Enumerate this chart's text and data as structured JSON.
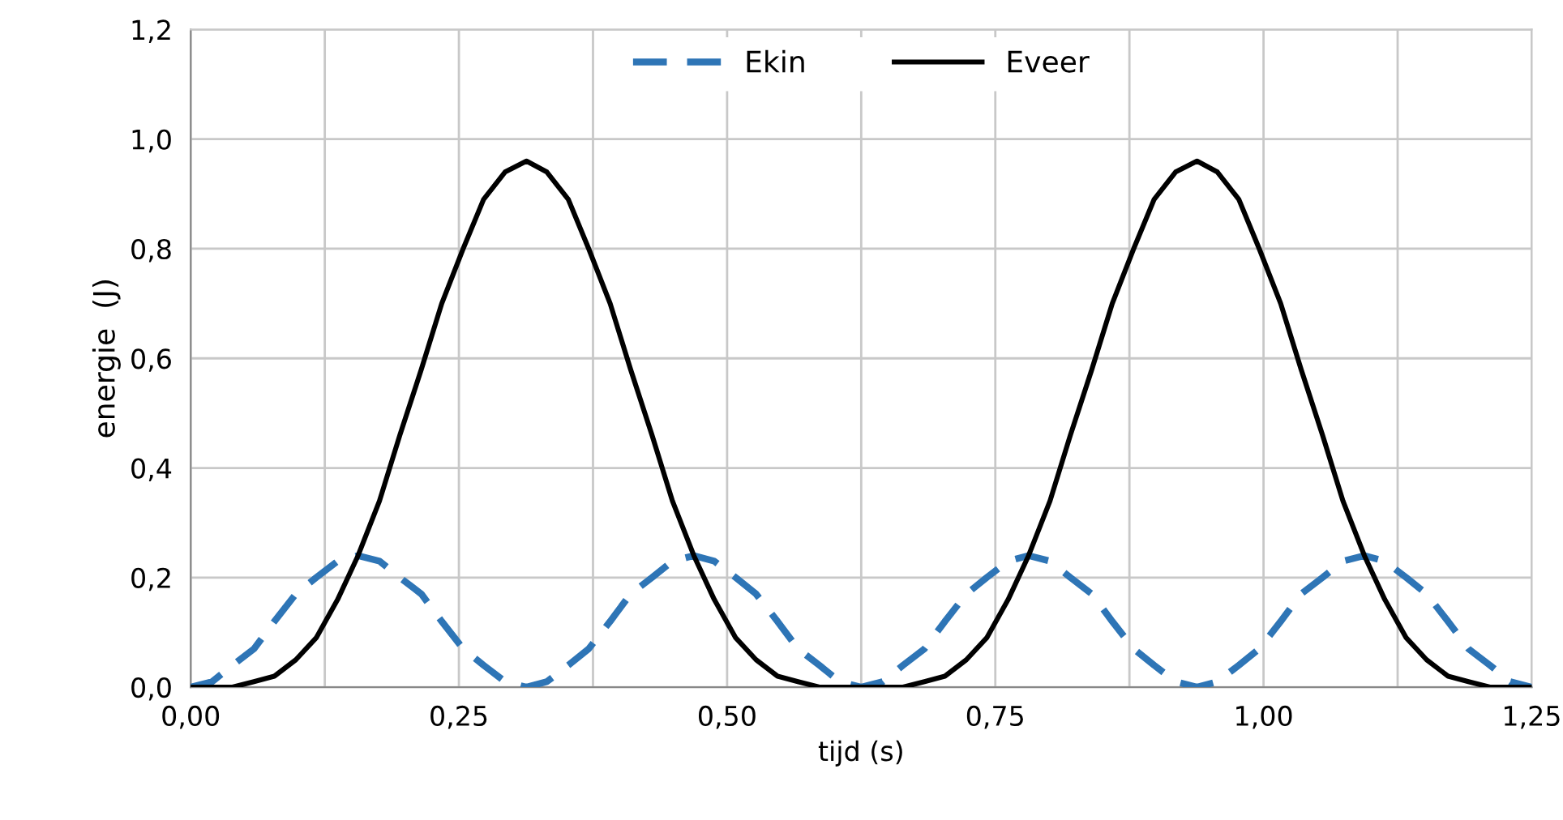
{
  "chart_data": {
    "type": "line",
    "xlabel": "tijd (s)",
    "ylabel": "energie  (J)",
    "x": [
      0,
      0.02,
      0.039,
      0.059,
      0.078,
      0.098,
      0.117,
      0.137,
      0.156,
      0.176,
      0.195,
      0.215,
      0.234,
      0.254,
      0.273,
      0.293,
      0.313,
      0.332,
      0.352,
      0.371,
      0.391,
      0.41,
      0.43,
      0.449,
      0.469,
      0.488,
      0.508,
      0.527,
      0.547,
      0.566,
      0.586,
      0.605,
      0.625,
      0.645,
      0.664,
      0.684,
      0.703,
      0.723,
      0.742,
      0.762,
      0.781,
      0.801,
      0.82,
      0.84,
      0.859,
      0.879,
      0.898,
      0.918,
      0.938,
      0.957,
      0.977,
      0.996,
      1.016,
      1.035,
      1.055,
      1.074,
      1.094,
      1.113,
      1.133,
      1.152,
      1.172,
      1.191,
      1.211,
      1.23,
      1.25
    ],
    "series": [
      {
        "name": "Ekin",
        "color": "#2e75b6",
        "line_style": "dashed",
        "values": [
          0,
          0.01,
          0.04,
          0.07,
          0.12,
          0.17,
          0.2,
          0.23,
          0.24,
          0.23,
          0.2,
          0.17,
          0.12,
          0.07,
          0.04,
          0.01,
          0,
          0.01,
          0.04,
          0.07,
          0.12,
          0.17,
          0.2,
          0.23,
          0.24,
          0.23,
          0.2,
          0.17,
          0.12,
          0.07,
          0.04,
          0.01,
          0,
          0.01,
          0.04,
          0.07,
          0.12,
          0.17,
          0.2,
          0.23,
          0.24,
          0.23,
          0.2,
          0.17,
          0.12,
          0.07,
          0.04,
          0.01,
          0,
          0.01,
          0.04,
          0.07,
          0.12,
          0.17,
          0.2,
          0.23,
          0.24,
          0.23,
          0.2,
          0.17,
          0.12,
          0.07,
          0.04,
          0.01,
          0
        ]
      },
      {
        "name": "Eveer",
        "color": "#000000",
        "line_style": "solid",
        "values": [
          0,
          0,
          0,
          0.01,
          0.02,
          0.05,
          0.09,
          0.16,
          0.24,
          0.34,
          0.46,
          0.58,
          0.7,
          0.8,
          0.89,
          0.94,
          0.96,
          0.94,
          0.89,
          0.8,
          0.7,
          0.58,
          0.46,
          0.34,
          0.24,
          0.16,
          0.09,
          0.05,
          0.02,
          0.01,
          0,
          0,
          0,
          0,
          0,
          0.01,
          0.02,
          0.05,
          0.09,
          0.16,
          0.24,
          0.34,
          0.46,
          0.58,
          0.7,
          0.8,
          0.89,
          0.94,
          0.96,
          0.94,
          0.89,
          0.8,
          0.7,
          0.58,
          0.46,
          0.34,
          0.24,
          0.16,
          0.09,
          0.05,
          0.02,
          0.01,
          0,
          0,
          0
        ]
      }
    ],
    "xlim": [
      0,
      1.25
    ],
    "xticks": [
      {
        "value": 0,
        "label": "0,00"
      },
      {
        "value": 0.125,
        "label": null
      },
      {
        "value": 0.25,
        "label": "0,25"
      },
      {
        "value": 0.375,
        "label": null
      },
      {
        "value": 0.5,
        "label": "0,50"
      },
      {
        "value": 0.625,
        "label": null
      },
      {
        "value": 0.75,
        "label": "0,75"
      },
      {
        "value": 0.875,
        "label": null
      },
      {
        "value": 1.0,
        "label": "1,00"
      },
      {
        "value": 1.125,
        "label": null
      },
      {
        "value": 1.25,
        "label": "1,25"
      }
    ],
    "ylim": [
      0,
      1.2
    ],
    "yticks": [
      {
        "value": 0,
        "label": "0,0"
      },
      {
        "value": 0.2,
        "label": "0,2"
      },
      {
        "value": 0.4,
        "label": "0,4"
      },
      {
        "value": 0.6,
        "label": "0,6"
      },
      {
        "value": 0.8,
        "label": "0,8"
      },
      {
        "value": 1.0,
        "label": "1,0"
      },
      {
        "value": 1.2,
        "label": "1,2"
      }
    ],
    "grid": true,
    "legend": "top"
  }
}
